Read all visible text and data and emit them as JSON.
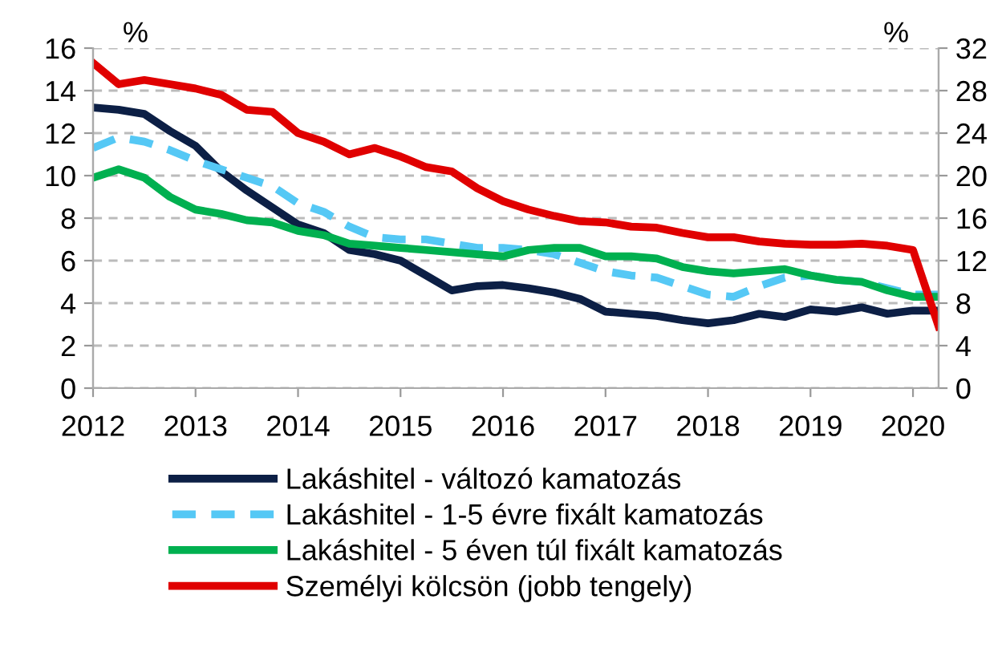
{
  "chart_data": {
    "type": "line",
    "annotations": [
      "%",
      "%"
    ],
    "x": [
      2012,
      2012.25,
      2012.5,
      2012.75,
      2013,
      2013.25,
      2013.5,
      2013.75,
      2014,
      2014.25,
      2014.5,
      2014.75,
      2015,
      2015.25,
      2015.5,
      2015.75,
      2016,
      2016.25,
      2016.5,
      2016.75,
      2017,
      2017.25,
      2017.5,
      2017.75,
      2018,
      2018.25,
      2018.5,
      2018.75,
      2019,
      2019.25,
      2019.5,
      2019.75,
      2020,
      2020.25
    ],
    "series": [
      {
        "name": "Lakáshitel - változó kamatozás",
        "color": "#0c1f45",
        "line_style": "solid",
        "values": [
          13.2,
          13.1,
          12.9,
          12.1,
          11.4,
          10.2,
          9.3,
          8.5,
          7.7,
          7.3,
          6.5,
          6.3,
          6.0,
          5.3,
          4.6,
          4.8,
          4.85,
          4.7,
          4.5,
          4.2,
          3.6,
          3.5,
          3.4,
          3.2,
          3.05,
          3.2,
          3.5,
          3.35,
          3.7,
          3.6,
          3.8,
          3.5,
          3.65,
          3.65
        ]
      },
      {
        "name": "Lakáshitel - 1-5 évre fixált kamatozás",
        "color": "#55c8f5",
        "line_style": "dashed",
        "values": [
          11.3,
          11.8,
          11.6,
          11.2,
          10.7,
          10.3,
          9.9,
          9.5,
          8.7,
          8.3,
          7.6,
          7.1,
          7.0,
          7.0,
          6.8,
          6.6,
          6.6,
          6.5,
          6.3,
          5.9,
          5.5,
          5.3,
          5.2,
          4.8,
          4.4,
          4.3,
          4.8,
          5.2,
          5.3,
          5.1,
          5.0,
          4.7,
          4.4,
          4.4
        ]
      },
      {
        "name": "Lakáshitel - 5 éven túl fixált kamatozás",
        "color": "#00b050",
        "line_style": "solid",
        "values": [
          9.9,
          10.3,
          9.9,
          9.0,
          8.4,
          8.2,
          7.9,
          7.8,
          7.4,
          7.2,
          6.8,
          6.7,
          6.6,
          6.5,
          6.4,
          6.3,
          6.2,
          6.5,
          6.6,
          6.6,
          6.2,
          6.2,
          6.1,
          5.7,
          5.5,
          5.4,
          5.5,
          5.6,
          5.3,
          5.1,
          5.0,
          4.6,
          4.3,
          4.3
        ]
      },
      {
        "name": "Személyi kölcsön (jobb tengely)",
        "color": "#e00000",
        "line_style": "solid",
        "axis": "y2",
        "values": [
          30.6,
          28.6,
          29,
          28.6,
          28.2,
          27.6,
          26.2,
          26,
          24,
          23.2,
          22,
          22.6,
          21.8,
          20.8,
          20.4,
          18.8,
          17.6,
          16.8,
          16.2,
          15.7,
          15.6,
          15.2,
          15.1,
          14.6,
          14.2,
          14.2,
          13.8,
          13.6,
          13.5,
          13.5,
          13.6,
          13.4,
          13,
          5.8
        ]
      }
    ],
    "xlim": [
      2012,
      2020.25
    ],
    "xticks": [
      2012,
      2013,
      2014,
      2015,
      2016,
      2017,
      2018,
      2019,
      2020
    ],
    "ylim": [
      0,
      16
    ],
    "yticks": [
      0,
      2,
      4,
      6,
      8,
      10,
      12,
      14,
      16
    ],
    "y2lim": [
      0,
      32
    ],
    "y2ticks": [
      0,
      4,
      8,
      12,
      16,
      20,
      24,
      28,
      32
    ],
    "grid": "y",
    "legend": "bottom",
    "marker": "none"
  }
}
